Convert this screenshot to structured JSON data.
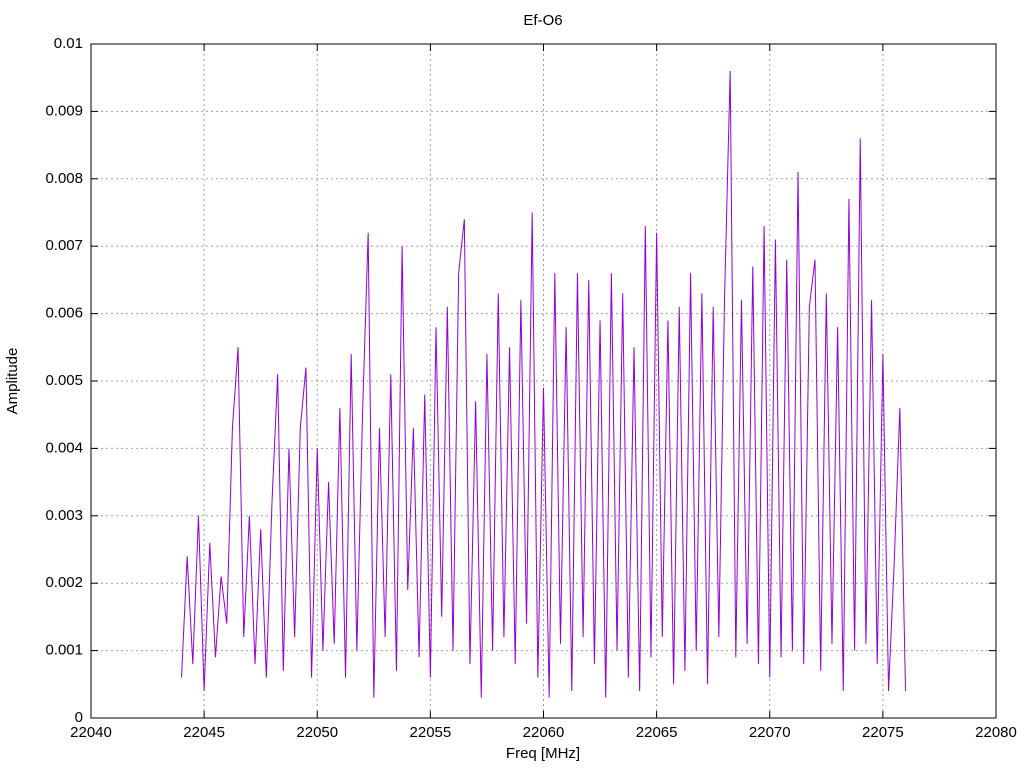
{
  "chart_data": {
    "type": "line",
    "title": "Ef-O6",
    "x_label": "Freq [MHz]",
    "y_label": "Amplitude",
    "x": [
      22044,
      22044.25,
      22044.5,
      22044.75,
      22045,
      22045.25,
      22045.5,
      22045.75,
      22046,
      22046.25,
      22046.5,
      22046.75,
      22047,
      22047.25,
      22047.5,
      22047.75,
      22048,
      22048.25,
      22048.5,
      22048.75,
      22049,
      22049.25,
      22049.5,
      22049.75,
      22050,
      22050.25,
      22050.5,
      22050.75,
      22051,
      22051.25,
      22051.5,
      22051.75,
      22052,
      22052.25,
      22052.5,
      22052.75,
      22053,
      22053.25,
      22053.5,
      22053.75,
      22054,
      22054.25,
      22054.5,
      22054.75,
      22055,
      22055.25,
      22055.5,
      22055.75,
      22056,
      22056.25,
      22056.5,
      22056.75,
      22057,
      22057.25,
      22057.5,
      22057.75,
      22058,
      22058.25,
      22058.5,
      22058.75,
      22059,
      22059.25,
      22059.5,
      22059.75,
      22060,
      22060.25,
      22060.5,
      22060.75,
      22061,
      22061.25,
      22061.5,
      22061.75,
      22062,
      22062.25,
      22062.5,
      22062.75,
      22063,
      22063.25,
      22063.5,
      22063.75,
      22064,
      22064.25,
      22064.5,
      22064.75,
      22065,
      22065.25,
      22065.5,
      22065.75,
      22066,
      22066.25,
      22066.5,
      22066.75,
      22067,
      22067.25,
      22067.5,
      22067.75,
      22068,
      22068.25,
      22068.5,
      22068.75,
      22069,
      22069.25,
      22069.5,
      22069.75,
      22070,
      22070.25,
      22070.5,
      22070.75,
      22071,
      22071.25,
      22071.5,
      22071.75,
      22072,
      22072.25,
      22072.5,
      22072.75,
      22073,
      22073.25,
      22073.5,
      22073.75,
      22074,
      22074.25,
      22074.5,
      22074.75,
      22075,
      22075.25,
      22075.5,
      22075.75,
      22076
    ],
    "series": [
      {
        "color": "#9400d3",
        "values": [
          0.0006,
          0.0024,
          0.0008,
          0.003,
          0.0004,
          0.0026,
          0.0009,
          0.0021,
          0.0014,
          0.0043,
          0.0055,
          0.0012,
          0.003,
          0.0008,
          0.0028,
          0.0006,
          0.0032,
          0.0051,
          0.0007,
          0.004,
          0.0012,
          0.0043,
          0.0052,
          0.0006,
          0.004,
          0.001,
          0.0035,
          0.0011,
          0.0046,
          0.0006,
          0.0054,
          0.001,
          0.0045,
          0.0072,
          0.0003,
          0.0043,
          0.0012,
          0.0051,
          0.0007,
          0.007,
          0.0019,
          0.0043,
          0.0009,
          0.0048,
          0.0006,
          0.0058,
          0.0015,
          0.0061,
          0.001,
          0.0066,
          0.0074,
          0.0008,
          0.0047,
          0.0003,
          0.0054,
          0.001,
          0.0063,
          0.0012,
          0.0055,
          0.0008,
          0.0062,
          0.0014,
          0.0075,
          0.0006,
          0.0049,
          0.0003,
          0.0066,
          0.0011,
          0.0058,
          0.0004,
          0.0066,
          0.0012,
          0.0065,
          0.0008,
          0.0059,
          0.0003,
          0.0066,
          0.001,
          0.0063,
          0.0006,
          0.0055,
          0.0004,
          0.0073,
          0.0009,
          0.0072,
          0.0012,
          0.0059,
          0.0005,
          0.0061,
          0.0007,
          0.0066,
          0.001,
          0.0063,
          0.0005,
          0.0061,
          0.0012,
          0.0062,
          0.0096,
          0.0009,
          0.0062,
          0.0011,
          0.0067,
          0.0008,
          0.0073,
          0.0006,
          0.0071,
          0.0009,
          0.0068,
          0.001,
          0.0081,
          0.0008,
          0.0061,
          0.0068,
          0.0007,
          0.0063,
          0.0011,
          0.0058,
          0.0004,
          0.0077,
          0.001,
          0.0086,
          0.0011,
          0.0062,
          0.0008,
          0.0054,
          0.0004,
          0.0023,
          0.0046,
          0.0004
        ]
      }
    ],
    "xlim": [
      22040,
      22080
    ],
    "xticks": [
      22040,
      22045,
      22050,
      22055,
      22060,
      22065,
      22070,
      22075,
      22080
    ],
    "ylim": [
      0,
      0.01
    ],
    "yticks": [
      0,
      0.001,
      0.002,
      0.003,
      0.004,
      0.005,
      0.006,
      0.007,
      0.008,
      0.009,
      0.01
    ],
    "grid": true
  }
}
